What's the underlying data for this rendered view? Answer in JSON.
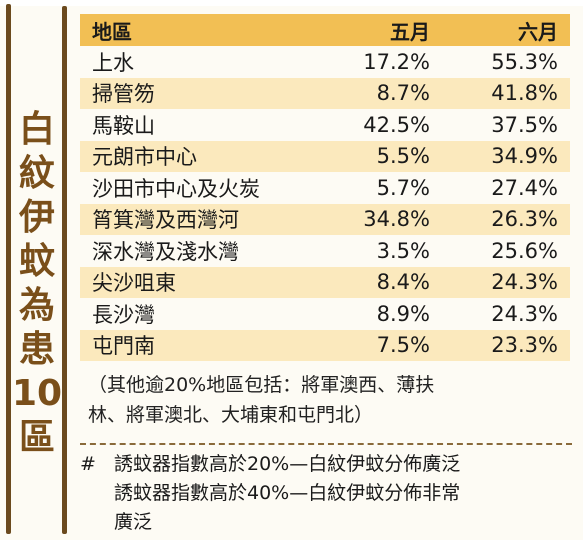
{
  "title_chars": [
    "白",
    "紋",
    "伊",
    "蚊",
    "為",
    "患",
    "10",
    "區"
  ],
  "table": {
    "headers": [
      "地區",
      "五月",
      "六月"
    ],
    "rows": [
      {
        "district": "上水",
        "may": "17.2%",
        "june": "55.3%"
      },
      {
        "district": "掃管笏",
        "may": "8.7%",
        "june": "41.8%"
      },
      {
        "district": "馬鞍山",
        "may": "42.5%",
        "june": "37.5%"
      },
      {
        "district": "元朗市中心",
        "may": "5.5%",
        "june": "34.9%"
      },
      {
        "district": "沙田市中心及火炭",
        "may": "5.7%",
        "june": "27.4%"
      },
      {
        "district": "筲箕灣及西灣河",
        "may": "34.8%",
        "june": "26.3%"
      },
      {
        "district": "深水灣及淺水灣",
        "may": "3.5%",
        "june": "25.6%"
      },
      {
        "district": "尖沙咀東",
        "may": "8.4%",
        "june": "24.3%"
      },
      {
        "district": "長沙灣",
        "may": "8.9%",
        "june": "24.3%"
      },
      {
        "district": "屯門南",
        "may": "7.5%",
        "june": "23.3%"
      }
    ]
  },
  "note": {
    "line1": "（其他逾20%地區包括：將軍澳西、薄扶",
    "line2": "林、將軍澳北、大埔東和屯門北）"
  },
  "legend": {
    "mark": "#",
    "line1": "誘蚊器指數高於20%—白紋伊蚊分佈廣泛",
    "line2": "誘蚊器指數高於40%—白紋伊蚊分佈非常",
    "line3": "廣泛"
  },
  "colors": {
    "header": "#f2bf54",
    "shade": "#fbe9bd",
    "title": "#7a4f1a",
    "rule": "#6b4a1e"
  }
}
